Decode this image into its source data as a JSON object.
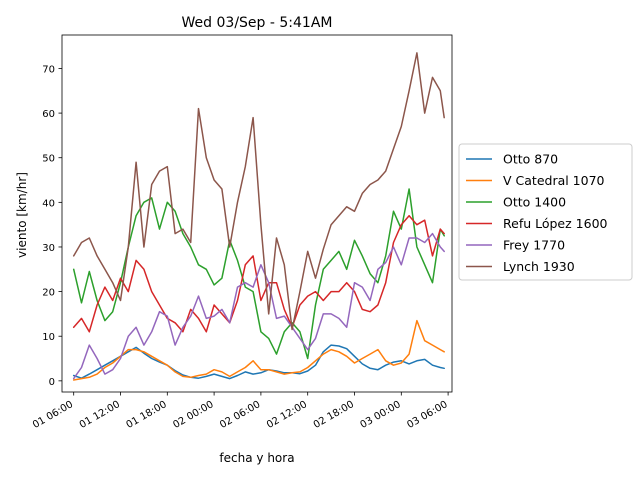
{
  "chart_data": {
    "type": "line",
    "title": "Wed 03/Sep - 5:41AM",
    "xlabel": "fecha y hora",
    "ylabel": "viento [km/hr]",
    "x_unit": "hours since 01 06:00",
    "xlim": [
      -1.5,
      48.5
    ],
    "ylim": [
      -2.5,
      77.5
    ],
    "x_ticks": [
      {
        "x": 0,
        "label": "01 06:00"
      },
      {
        "x": 6,
        "label": "01 12:00"
      },
      {
        "x": 12,
        "label": "01 18:00"
      },
      {
        "x": 18,
        "label": "02 00:00"
      },
      {
        "x": 24,
        "label": "02 06:00"
      },
      {
        "x": 30,
        "label": "02 12:00"
      },
      {
        "x": 36,
        "label": "02 18:00"
      },
      {
        "x": 42,
        "label": "03 00:00"
      },
      {
        "x": 48,
        "label": "03 06:00"
      }
    ],
    "y_ticks": [
      0,
      10,
      20,
      30,
      40,
      50,
      60,
      70
    ],
    "legend_position": "center-right",
    "series": [
      {
        "name": "Otto 870",
        "color": "#1f77b4",
        "points": [
          [
            0,
            1.2
          ],
          [
            1,
            0.6
          ],
          [
            2,
            1.5
          ],
          [
            3,
            2.5
          ],
          [
            4,
            3.5
          ],
          [
            5,
            4.5
          ],
          [
            6,
            5.5
          ],
          [
            7,
            6.5
          ],
          [
            8,
            7.5
          ],
          [
            9,
            6.2
          ],
          [
            10,
            5.0
          ],
          [
            11,
            4.2
          ],
          [
            12,
            3.5
          ],
          [
            13,
            2.3
          ],
          [
            14,
            1.3
          ],
          [
            15,
            0.8
          ],
          [
            16,
            0.6
          ],
          [
            17,
            1.0
          ],
          [
            18,
            1.5
          ],
          [
            19,
            1.0
          ],
          [
            20,
            0.5
          ],
          [
            21,
            1.2
          ],
          [
            22,
            2.0
          ],
          [
            23,
            1.5
          ],
          [
            24,
            1.8
          ],
          [
            25,
            2.5
          ],
          [
            26,
            2.2
          ],
          [
            27,
            1.8
          ],
          [
            28,
            1.8
          ],
          [
            29,
            1.6
          ],
          [
            30,
            2.2
          ],
          [
            31,
            3.5
          ],
          [
            32,
            6.5
          ],
          [
            33,
            8.0
          ],
          [
            34,
            7.8
          ],
          [
            35,
            7.2
          ],
          [
            36,
            5.5
          ],
          [
            37,
            3.8
          ],
          [
            38,
            2.8
          ],
          [
            39,
            2.5
          ],
          [
            40,
            3.5
          ],
          [
            41,
            4.2
          ],
          [
            42,
            4.5
          ],
          [
            43,
            3.8
          ],
          [
            44,
            4.5
          ],
          [
            45,
            4.8
          ],
          [
            46,
            3.5
          ],
          [
            47,
            3.0
          ],
          [
            47.5,
            2.8
          ]
        ]
      },
      {
        "name": "V Catedral 1070",
        "color": "#ff7f0e",
        "points": [
          [
            0,
            0.2
          ],
          [
            1,
            0.5
          ],
          [
            2,
            0.8
          ],
          [
            3,
            1.5
          ],
          [
            4,
            3.0
          ],
          [
            5,
            4.0
          ],
          [
            6,
            5.5
          ],
          [
            7,
            7.0
          ],
          [
            8,
            7.0
          ],
          [
            9,
            6.5
          ],
          [
            10,
            5.5
          ],
          [
            11,
            4.5
          ],
          [
            12,
            3.5
          ],
          [
            13,
            2.0
          ],
          [
            14,
            1.0
          ],
          [
            15,
            0.8
          ],
          [
            16,
            1.2
          ],
          [
            17,
            1.5
          ],
          [
            18,
            2.5
          ],
          [
            19,
            2.0
          ],
          [
            20,
            1.0
          ],
          [
            21,
            2.0
          ],
          [
            22,
            3.0
          ],
          [
            23,
            4.5
          ],
          [
            24,
            2.5
          ],
          [
            25,
            2.5
          ],
          [
            26,
            2.0
          ],
          [
            27,
            1.5
          ],
          [
            28,
            1.8
          ],
          [
            29,
            2.0
          ],
          [
            30,
            3.0
          ],
          [
            31,
            4.5
          ],
          [
            32,
            6.0
          ],
          [
            33,
            7.0
          ],
          [
            34,
            6.5
          ],
          [
            35,
            5.5
          ],
          [
            36,
            4.0
          ],
          [
            37,
            5.0
          ],
          [
            38,
            6.0
          ],
          [
            39,
            7.0
          ],
          [
            40,
            4.5
          ],
          [
            41,
            3.5
          ],
          [
            42,
            4.0
          ],
          [
            43,
            6.0
          ],
          [
            44,
            13.5
          ],
          [
            45,
            9.0
          ],
          [
            46,
            8.0
          ],
          [
            47,
            7.0
          ],
          [
            47.5,
            6.5
          ]
        ]
      },
      {
        "name": "Otto 1400",
        "color": "#2ca02c",
        "points": [
          [
            0,
            25.0
          ],
          [
            1,
            17.5
          ],
          [
            2,
            24.5
          ],
          [
            3,
            18.0
          ],
          [
            4,
            13.5
          ],
          [
            5,
            15.5
          ],
          [
            6,
            22.0
          ],
          [
            7,
            30.0
          ],
          [
            8,
            37.0
          ],
          [
            9,
            40.0
          ],
          [
            10,
            41.0
          ],
          [
            11,
            34.0
          ],
          [
            12,
            40.0
          ],
          [
            13,
            38.0
          ],
          [
            14,
            33.0
          ],
          [
            15,
            30.0
          ],
          [
            16,
            26.0
          ],
          [
            17,
            25.0
          ],
          [
            18,
            21.5
          ],
          [
            19,
            23.0
          ],
          [
            20,
            31.5
          ],
          [
            21,
            27.0
          ],
          [
            22,
            21.0
          ],
          [
            23,
            20.0
          ],
          [
            24,
            11.0
          ],
          [
            25,
            9.5
          ],
          [
            26,
            6.0
          ],
          [
            27,
            11.0
          ],
          [
            28,
            13.0
          ],
          [
            29,
            11.0
          ],
          [
            30,
            5.0
          ],
          [
            31,
            17.0
          ],
          [
            32,
            25.0
          ],
          [
            33,
            27.0
          ],
          [
            34,
            29.0
          ],
          [
            35,
            25.0
          ],
          [
            36,
            31.5
          ],
          [
            37,
            28.0
          ],
          [
            38,
            24.0
          ],
          [
            39,
            22.0
          ],
          [
            40,
            28.0
          ],
          [
            41,
            38.0
          ],
          [
            42,
            34.0
          ],
          [
            43,
            43.0
          ],
          [
            44,
            30.0
          ],
          [
            45,
            26.0
          ],
          [
            46,
            22.0
          ],
          [
            47,
            34.0
          ],
          [
            47.5,
            32.5
          ]
        ]
      },
      {
        "name": "Refu López 1600",
        "color": "#d62728",
        "points": [
          [
            0,
            12.0
          ],
          [
            1,
            14.0
          ],
          [
            2,
            11.0
          ],
          [
            3,
            17.0
          ],
          [
            4,
            21.0
          ],
          [
            5,
            18.0
          ],
          [
            6,
            23.0
          ],
          [
            7,
            20.0
          ],
          [
            8,
            27.0
          ],
          [
            9,
            25.0
          ],
          [
            10,
            20.0
          ],
          [
            11,
            17.0
          ],
          [
            12,
            14.0
          ],
          [
            13,
            13.0
          ],
          [
            14,
            11.0
          ],
          [
            15,
            16.0
          ],
          [
            16,
            14.0
          ],
          [
            17,
            11.0
          ],
          [
            18,
            17.0
          ],
          [
            19,
            15.0
          ],
          [
            20,
            13.0
          ],
          [
            21,
            18.0
          ],
          [
            22,
            26.0
          ],
          [
            23,
            28.0
          ],
          [
            24,
            18.0
          ],
          [
            25,
            22.0
          ],
          [
            26,
            22.0
          ],
          [
            27,
            16.0
          ],
          [
            28,
            12.0
          ],
          [
            29,
            17.0
          ],
          [
            30,
            19.0
          ],
          [
            31,
            20.0
          ],
          [
            32,
            18.0
          ],
          [
            33,
            20.0
          ],
          [
            34,
            20.0
          ],
          [
            35,
            22.0
          ],
          [
            36,
            20.0
          ],
          [
            37,
            16.0
          ],
          [
            38,
            15.5
          ],
          [
            39,
            17.0
          ],
          [
            40,
            22.0
          ],
          [
            41,
            31.0
          ],
          [
            42,
            35.0
          ],
          [
            43,
            37.0
          ],
          [
            44,
            35.0
          ],
          [
            45,
            36.0
          ],
          [
            46,
            28.0
          ],
          [
            47,
            34.0
          ],
          [
            47.5,
            33.0
          ]
        ]
      },
      {
        "name": "Frey 1770",
        "color": "#9467bd",
        "points": [
          [
            0,
            0.5
          ],
          [
            1,
            3.0
          ],
          [
            2,
            8.0
          ],
          [
            3,
            5.0
          ],
          [
            4,
            1.5
          ],
          [
            5,
            2.5
          ],
          [
            6,
            5.0
          ],
          [
            7,
            10.0
          ],
          [
            8,
            12.0
          ],
          [
            9,
            8.0
          ],
          [
            10,
            11.0
          ],
          [
            11,
            15.5
          ],
          [
            12,
            14.5
          ],
          [
            13,
            8.0
          ],
          [
            14,
            12.0
          ],
          [
            15,
            14.5
          ],
          [
            16,
            19.0
          ],
          [
            17,
            14.0
          ],
          [
            18,
            14.5
          ],
          [
            19,
            16.0
          ],
          [
            20,
            13.0
          ],
          [
            21,
            21.0
          ],
          [
            22,
            22.0
          ],
          [
            23,
            21.0
          ],
          [
            24,
            26.0
          ],
          [
            25,
            22.0
          ],
          [
            26,
            14.0
          ],
          [
            27,
            14.5
          ],
          [
            28,
            12.0
          ],
          [
            29,
            9.5
          ],
          [
            30,
            7.0
          ],
          [
            31,
            9.5
          ],
          [
            32,
            15.0
          ],
          [
            33,
            15.0
          ],
          [
            34,
            14.0
          ],
          [
            35,
            12.0
          ],
          [
            36,
            22.0
          ],
          [
            37,
            21.0
          ],
          [
            38,
            18.0
          ],
          [
            39,
            25.0
          ],
          [
            40,
            26.5
          ],
          [
            41,
            30.0
          ],
          [
            42,
            26.0
          ],
          [
            43,
            32.0
          ],
          [
            44,
            32.0
          ],
          [
            45,
            31.0
          ],
          [
            46,
            33.0
          ],
          [
            47,
            30.0
          ],
          [
            47.5,
            29.0
          ]
        ]
      },
      {
        "name": "Lynch 1930",
        "color": "#8c564b",
        "points": [
          [
            0,
            28.0
          ],
          [
            1,
            31.0
          ],
          [
            2,
            32.0
          ],
          [
            3,
            28.0
          ],
          [
            4,
            25.0
          ],
          [
            5,
            22.0
          ],
          [
            6,
            18.0
          ],
          [
            7,
            30.0
          ],
          [
            8,
            49.0
          ],
          [
            9,
            30.0
          ],
          [
            10,
            44.0
          ],
          [
            11,
            47.0
          ],
          [
            12,
            48.0
          ],
          [
            13,
            33.0
          ],
          [
            14,
            34.0
          ],
          [
            15,
            31.0
          ],
          [
            16,
            61.0
          ],
          [
            17,
            50.0
          ],
          [
            18,
            45.0
          ],
          [
            19,
            43.0
          ],
          [
            20,
            30.0
          ],
          [
            21,
            40.0
          ],
          [
            22,
            48.0
          ],
          [
            23,
            59.0
          ],
          [
            24,
            35.0
          ],
          [
            25,
            15.0
          ],
          [
            26,
            32.0
          ],
          [
            27,
            26.0
          ],
          [
            28,
            11.5
          ],
          [
            29,
            20.0
          ],
          [
            30,
            29.0
          ],
          [
            31,
            23.0
          ],
          [
            32,
            29.5
          ],
          [
            33,
            35.0
          ],
          [
            34,
            37.0
          ],
          [
            35,
            39.0
          ],
          [
            36,
            38.0
          ],
          [
            37,
            42.0
          ],
          [
            38,
            44.0
          ],
          [
            39,
            45.0
          ],
          [
            40,
            47.0
          ],
          [
            41,
            52.0
          ],
          [
            42,
            57.0
          ],
          [
            43,
            65.0
          ],
          [
            44,
            73.5
          ],
          [
            45,
            60.0
          ],
          [
            46,
            68.0
          ],
          [
            47,
            65.0
          ],
          [
            47.5,
            59.0
          ]
        ]
      }
    ]
  }
}
